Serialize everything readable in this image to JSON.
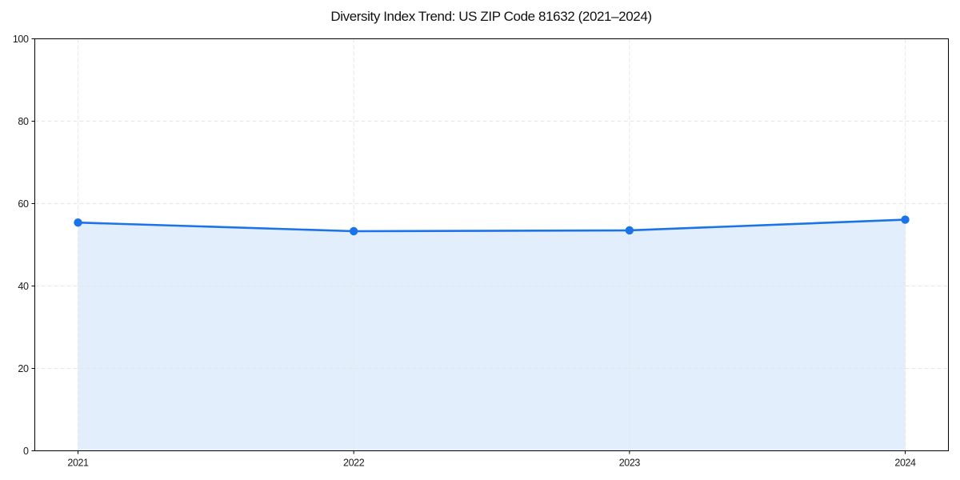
{
  "figure": {
    "background": "#ffffff"
  },
  "chart_data": {
    "type": "line",
    "title": "Diversity Index Trend: US ZIP Code 81632 (2021–2024)",
    "x": [
      "2021",
      "2022",
      "2023",
      "2024"
    ],
    "series": [
      {
        "name": "Diversity Index",
        "values": [
          55.4,
          53.3,
          53.5,
          56.1
        ]
      }
    ],
    "xlabel": "",
    "ylabel": "",
    "ylim": [
      0,
      100
    ],
    "yticks": [
      0,
      20,
      40,
      60,
      80,
      100
    ],
    "grid": true,
    "grid_style": "dashed",
    "legend_position": "none",
    "area_fill": true,
    "marker": "circle",
    "colors": {
      "line": "#1a73e8",
      "marker": "#1a73e8",
      "fill": "rgba(26,115,232,0.12)",
      "grid": "#e6e6e6",
      "spine": "#000000",
      "tick": "#000000",
      "tick_label": "#1a1a1a",
      "title": "#111111"
    }
  }
}
